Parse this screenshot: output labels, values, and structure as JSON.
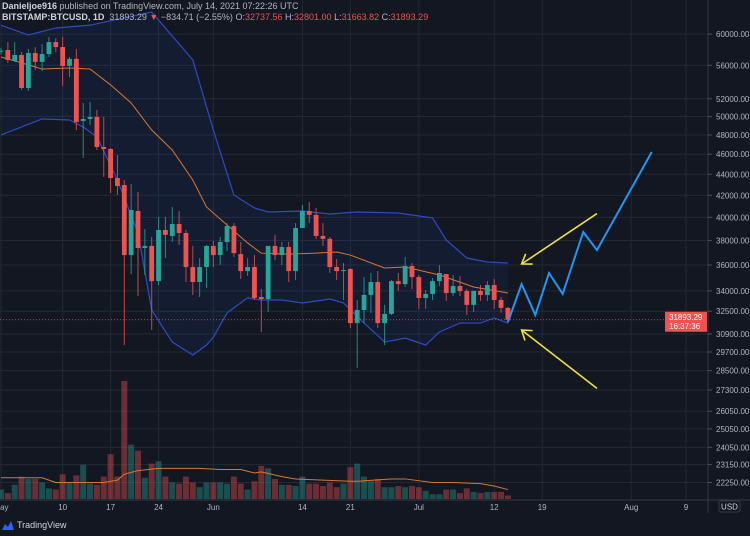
{
  "header": {
    "author": "Danieljoe916",
    "published_text": "published on TradingView.com, July 14, 2021 07:22:26 UTC",
    "symbol": "BITSTAMP:BTCUSD, 1D",
    "last_price": "31893.29",
    "change": "−834.71 (−2.55%)",
    "open_label": "O:",
    "open": "32737.56",
    "high_label": "H:",
    "high": "32801.00",
    "low_label": "L:",
    "low": "31663.82",
    "close_label": "C:",
    "close": "31893.29"
  },
  "price_label": {
    "price": "31893.29",
    "countdown": "16:37:36"
  },
  "currency_badge": "USD",
  "footer": {
    "brand": "TradingView"
  },
  "colors": {
    "background": "#131722",
    "up": "#26a69a",
    "down": "#ef5350",
    "band": "#2b4cc4",
    "basis": "#d9772b",
    "projection": "#2196f3",
    "arrow": "#f0e13c"
  },
  "chart_data": {
    "type": "candlestick",
    "y_scale": "log",
    "grid": true,
    "y_ticks": [
      60000,
      56000,
      52000,
      50000,
      48000,
      46000,
      44000,
      42000,
      40000,
      38000,
      36000,
      34000,
      32500,
      30900,
      29700,
      28500,
      27300,
      26050,
      25050,
      24050,
      23150,
      22250
    ],
    "x_ticks": [
      {
        "date": "2021-05-01",
        "label": "May"
      },
      {
        "date": "2021-05-10",
        "label": "10"
      },
      {
        "date": "2021-05-17",
        "label": "17"
      },
      {
        "date": "2021-05-24",
        "label": "24"
      },
      {
        "date": "2021-06-01",
        "label": "Jun"
      },
      {
        "date": "2021-06-14",
        "label": "14"
      },
      {
        "date": "2021-06-21",
        "label": "21"
      },
      {
        "date": "2021-07-01",
        "label": "Jul"
      },
      {
        "date": "2021-07-12",
        "label": "12"
      },
      {
        "date": "2021-07-19",
        "label": "19"
      },
      {
        "date": "2021-08-01",
        "label": "Aug"
      },
      {
        "date": "2021-08-09",
        "label": "9"
      }
    ],
    "candle_columns": [
      "date",
      "open",
      "high",
      "low",
      "close",
      "volume_relative"
    ],
    "candles": [
      [
        "2021-05-01",
        57800,
        58200,
        57300,
        57850,
        8
      ],
      [
        "2021-05-02",
        57920,
        58950,
        56300,
        56670,
        5
      ],
      [
        "2021-05-03",
        56540,
        58950,
        56420,
        57290,
        12
      ],
      [
        "2021-05-04",
        57290,
        57660,
        53030,
        53260,
        19
      ],
      [
        "2021-05-05",
        53260,
        58050,
        52910,
        57540,
        17
      ],
      [
        "2021-05-06",
        57540,
        58310,
        55410,
        56420,
        17
      ],
      [
        "2021-05-07",
        56420,
        58690,
        55290,
        57410,
        14
      ],
      [
        "2021-05-08",
        57410,
        59610,
        57040,
        58950,
        9
      ],
      [
        "2021-05-09",
        58950,
        59480,
        57660,
        58310,
        8
      ],
      [
        "2021-05-10",
        58310,
        59610,
        53490,
        55920,
        21
      ],
      [
        "2021-05-11",
        55920,
        57040,
        54570,
        56800,
        14
      ],
      [
        "2021-05-12",
        56800,
        58050,
        48530,
        49400,
        20
      ],
      [
        "2021-05-13",
        49510,
        51530,
        45620,
        49730,
        29
      ],
      [
        "2021-05-14",
        49730,
        51640,
        49070,
        49950,
        13
      ],
      [
        "2021-05-15",
        49950,
        50730,
        46430,
        46740,
        12
      ],
      [
        "2021-05-16",
        46740,
        49950,
        43740,
        46530,
        19
      ],
      [
        "2021-05-17",
        46530,
        46640,
        42220,
        43640,
        38
      ],
      [
        "2021-05-18",
        43640,
        45920,
        42030,
        42880,
        19
      ],
      [
        "2021-05-19",
        42970,
        43450,
        30160,
        36800,
        100
      ],
      [
        "2021-05-20",
        36800,
        43070,
        35280,
        40660,
        46
      ],
      [
        "2021-05-21",
        40570,
        42310,
        33610,
        37380,
        41
      ],
      [
        "2021-05-22",
        37380,
        38990,
        35210,
        37550,
        18
      ],
      [
        "2021-05-23",
        37550,
        38300,
        31180,
        34740,
        30
      ],
      [
        "2021-05-24",
        34740,
        40040,
        34440,
        38900,
        32
      ],
      [
        "2021-05-25",
        38900,
        40040,
        36560,
        38480,
        19
      ],
      [
        "2021-05-26",
        38390,
        40930,
        37880,
        39420,
        14
      ],
      [
        "2021-05-27",
        39420,
        40570,
        37630,
        38640,
        13
      ],
      [
        "2021-05-28",
        38640,
        38900,
        34670,
        35840,
        19
      ],
      [
        "2021-05-29",
        35840,
        37550,
        33690,
        34670,
        14
      ],
      [
        "2021-05-30",
        34670,
        36560,
        33540,
        35840,
        10
      ],
      [
        "2021-05-31",
        35840,
        37630,
        34210,
        37550,
        14
      ],
      [
        "2021-06-01",
        37550,
        37960,
        35840,
        36800,
        14
      ],
      [
        "2021-06-02",
        36800,
        38300,
        36000,
        37880,
        14
      ],
      [
        "2021-06-03",
        37880,
        39500,
        37130,
        39240,
        13
      ],
      [
        "2021-06-04",
        39240,
        39500,
        36640,
        36960,
        19
      ],
      [
        "2021-06-05",
        36880,
        37880,
        34900,
        35520,
        13
      ],
      [
        "2021-06-06",
        35520,
        36560,
        35130,
        35840,
        8
      ],
      [
        "2021-06-07",
        35840,
        36800,
        33320,
        33470,
        15
      ],
      [
        "2021-06-08",
        33540,
        34140,
        31040,
        33390,
        28
      ],
      [
        "2021-06-09",
        33390,
        37550,
        32450,
        37550,
        26
      ],
      [
        "2021-06-10",
        37550,
        38480,
        36400,
        36800,
        17
      ],
      [
        "2021-06-11",
        36800,
        37880,
        36000,
        37460,
        12
      ],
      [
        "2021-06-12",
        37460,
        37880,
        34670,
        35520,
        12
      ],
      [
        "2021-06-13",
        35520,
        39500,
        34820,
        39070,
        11
      ],
      [
        "2021-06-14",
        39070,
        41110,
        39070,
        40570,
        19
      ],
      [
        "2021-06-15",
        40570,
        41390,
        39510,
        40220,
        13
      ],
      [
        "2021-06-16",
        40220,
        40840,
        38140,
        38390,
        13
      ],
      [
        "2021-06-17",
        38390,
        39500,
        37550,
        38140,
        11
      ],
      [
        "2021-06-18",
        38140,
        38300,
        35370,
        35840,
        14
      ],
      [
        "2021-06-19",
        35840,
        36480,
        34820,
        35520,
        10
      ],
      [
        "2021-06-20",
        35520,
        36160,
        33320,
        35600,
        13
      ],
      [
        "2021-06-21",
        35680,
        35760,
        31320,
        31660,
        27
      ],
      [
        "2021-06-22",
        31660,
        33320,
        28660,
        32590,
        30
      ],
      [
        "2021-06-23",
        32590,
        35050,
        31660,
        33690,
        19
      ],
      [
        "2021-06-24",
        33690,
        35370,
        32380,
        34670,
        15
      ],
      [
        "2021-06-25",
        34670,
        35520,
        31320,
        31660,
        17
      ],
      [
        "2021-06-26",
        31660,
        32960,
        30160,
        32310,
        10
      ],
      [
        "2021-06-27",
        32310,
        34820,
        32240,
        34740,
        10
      ],
      [
        "2021-06-28",
        34740,
        35370,
        33990,
        34510,
        11
      ],
      [
        "2021-06-29",
        34510,
        36640,
        34290,
        35920,
        10
      ],
      [
        "2021-06-30",
        35920,
        36160,
        34140,
        35050,
        11
      ],
      [
        "2021-07-01",
        35050,
        35210,
        32670,
        33470,
        10
      ],
      [
        "2021-07-02",
        33470,
        34060,
        32670,
        33770,
        7
      ],
      [
        "2021-07-03",
        33770,
        34980,
        33320,
        34740,
        4
      ],
      [
        "2021-07-04",
        34740,
        36000,
        34360,
        35370,
        4
      ],
      [
        "2021-07-05",
        35290,
        35290,
        33250,
        33840,
        8
      ],
      [
        "2021-07-06",
        33840,
        35210,
        33610,
        34360,
        8
      ],
      [
        "2021-07-07",
        34360,
        35130,
        33610,
        33990,
        5
      ],
      [
        "2021-07-08",
        33990,
        34140,
        32240,
        32960,
        9
      ],
      [
        "2021-07-09",
        32960,
        33990,
        32450,
        33990,
        6
      ],
      [
        "2021-07-10",
        33990,
        34440,
        33250,
        33690,
        5
      ],
      [
        "2021-07-11",
        33690,
        34740,
        33250,
        34440,
        6
      ],
      [
        "2021-07-12",
        34440,
        34900,
        32670,
        33320,
        6
      ],
      [
        "2021-07-13",
        33320,
        33540,
        32380,
        32740,
        6
      ],
      [
        "2021-07-14",
        32737.56,
        32801.0,
        31663.82,
        31893.29,
        3
      ]
    ],
    "bollinger": {
      "upper": [
        [
          "2021-05-01",
          61200
        ],
        [
          "2021-05-05",
          59880
        ],
        [
          "2021-05-09",
          60820
        ],
        [
          "2021-05-14",
          61200
        ],
        [
          "2021-05-23",
          63000
        ],
        [
          "2021-05-29",
          56670
        ],
        [
          "2021-06-01",
          48530
        ],
        [
          "2021-06-04",
          42030
        ],
        [
          "2021-06-07",
          40840
        ],
        [
          "2021-06-09",
          40480
        ],
        [
          "2021-06-14",
          40570
        ],
        [
          "2021-06-18",
          40300
        ],
        [
          "2021-06-22",
          40480
        ],
        [
          "2021-06-28",
          40390
        ],
        [
          "2021-07-03",
          39950
        ],
        [
          "2021-07-05",
          38050
        ],
        [
          "2021-07-08",
          36560
        ],
        [
          "2021-07-11",
          36240
        ],
        [
          "2021-07-14",
          36160
        ]
      ],
      "basis": [
        [
          "2021-05-01",
          57040
        ],
        [
          "2021-05-04",
          56300
        ],
        [
          "2021-05-07",
          55540
        ],
        [
          "2021-05-11",
          55660
        ],
        [
          "2021-05-14",
          55540
        ],
        [
          "2021-05-17",
          53620
        ],
        [
          "2021-05-20",
          51520
        ],
        [
          "2021-05-23",
          48530
        ],
        [
          "2021-05-26",
          46430
        ],
        [
          "2021-05-29",
          43450
        ],
        [
          "2021-05-31",
          40930
        ],
        [
          "2021-06-03",
          39330
        ],
        [
          "2021-06-06",
          37800
        ],
        [
          "2021-06-08",
          36960
        ],
        [
          "2021-06-12",
          36880
        ],
        [
          "2021-06-16",
          36960
        ],
        [
          "2021-06-19",
          37050
        ],
        [
          "2021-06-21",
          36800
        ],
        [
          "2021-06-26",
          35760
        ],
        [
          "2021-06-29",
          35840
        ],
        [
          "2021-07-04",
          35210
        ],
        [
          "2021-07-09",
          34290
        ],
        [
          "2021-07-14",
          33840
        ]
      ],
      "lower": [
        [
          "2021-05-01",
          48000
        ],
        [
          "2021-05-07",
          49730
        ],
        [
          "2021-05-11",
          49620
        ],
        [
          "2021-05-13",
          48850
        ],
        [
          "2021-05-15",
          47790
        ],
        [
          "2021-05-18",
          43450
        ],
        [
          "2021-05-21",
          38640
        ],
        [
          "2021-05-23",
          32590
        ],
        [
          "2021-05-26",
          30360
        ],
        [
          "2021-05-29",
          29500
        ],
        [
          "2021-05-31",
          30160
        ],
        [
          "2021-06-01",
          30690
        ],
        [
          "2021-06-03",
          32380
        ],
        [
          "2021-06-06",
          33470
        ],
        [
          "2021-06-08",
          33320
        ],
        [
          "2021-06-11",
          33320
        ],
        [
          "2021-06-14",
          33100
        ],
        [
          "2021-06-18",
          33390
        ],
        [
          "2021-06-20",
          33100
        ],
        [
          "2021-06-23",
          31660
        ],
        [
          "2021-06-26",
          30360
        ],
        [
          "2021-06-29",
          30620
        ],
        [
          "2021-07-02",
          30160
        ],
        [
          "2021-07-04",
          31040
        ],
        [
          "2021-07-07",
          31660
        ],
        [
          "2021-07-10",
          31660
        ],
        [
          "2021-07-12",
          32020
        ],
        [
          "2021-07-14",
          31660
        ]
      ]
    },
    "volume_ma": [
      [
        "2021-05-01",
        18
      ],
      [
        "2021-05-07",
        18
      ],
      [
        "2021-05-09",
        14
      ],
      [
        "2021-05-16",
        14
      ],
      [
        "2021-05-18",
        16
      ],
      [
        "2021-05-19",
        21
      ],
      [
        "2021-05-21",
        24
      ],
      [
        "2021-05-24",
        26
      ],
      [
        "2021-05-30",
        26
      ],
      [
        "2021-06-02",
        25
      ],
      [
        "2021-06-05",
        25
      ],
      [
        "2021-06-07",
        22
      ],
      [
        "2021-06-08",
        23
      ],
      [
        "2021-06-11",
        19
      ],
      [
        "2021-06-13",
        17
      ],
      [
        "2021-06-21",
        15
      ],
      [
        "2021-06-22",
        15
      ],
      [
        "2021-06-27",
        17
      ],
      [
        "2021-06-29",
        17
      ],
      [
        "2021-07-03",
        14
      ],
      [
        "2021-07-06",
        14
      ],
      [
        "2021-07-10",
        13
      ],
      [
        "2021-07-12",
        11
      ],
      [
        "2021-07-14",
        8
      ]
    ],
    "annotations": {
      "projection_path": [
        [
          "2021-07-14",
          31730
        ],
        [
          "2021-07-16",
          34510
        ],
        [
          "2021-07-18",
          32230
        ],
        [
          "2021-07-20",
          35370
        ],
        [
          "2021-07-22",
          33770
        ],
        [
          "2021-07-25",
          38730
        ],
        [
          "2021-07-27",
          37210
        ],
        [
          "2021-08-04",
          46230
        ]
      ],
      "arrow_upper": {
        "from": [
          "2021-07-27",
          40340
        ],
        "to": [
          "2021-07-16",
          36080
        ]
      },
      "arrow_lower": {
        "from": [
          "2021-07-27",
          27400
        ],
        "to": [
          "2021-07-16",
          31180
        ]
      }
    }
  }
}
